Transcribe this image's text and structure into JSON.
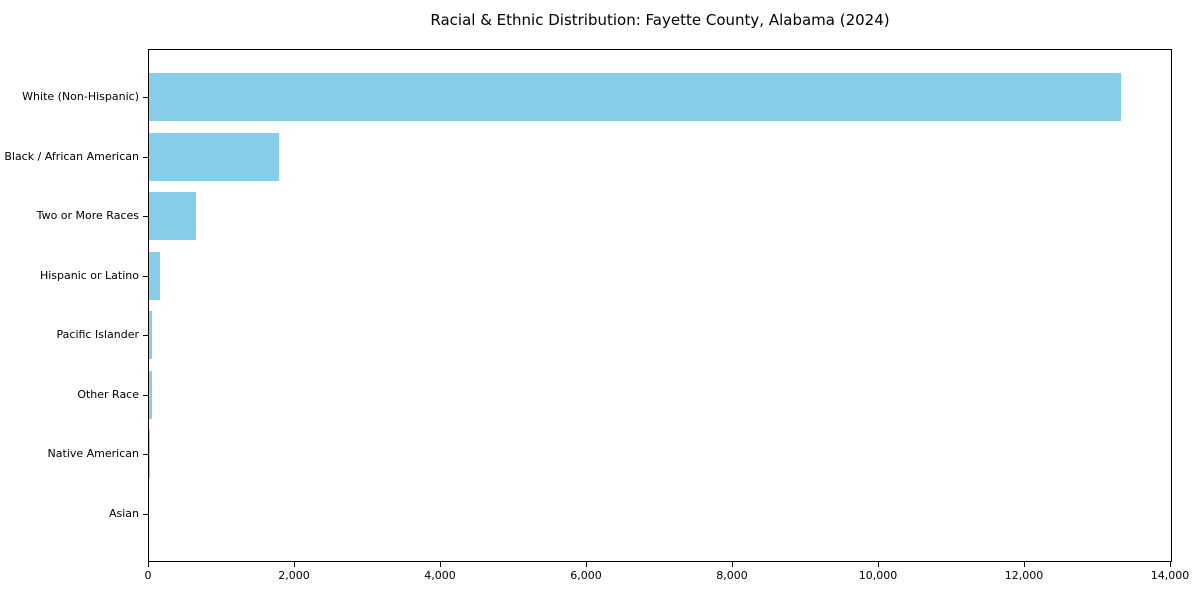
{
  "title": "Racial & Ethnic Distribution: Fayette County, Alabama (2024)",
  "colors": {
    "bar": "#87CEEB",
    "axis": "#000000",
    "background": "#FFFFFF",
    "text": "#000000"
  },
  "chart_data": {
    "type": "bar",
    "orientation": "horizontal",
    "title": "Racial & Ethnic Distribution: Fayette County, Alabama (2024)",
    "categories": [
      "White (Non-Hispanic)",
      "Black / African American",
      "Two or More Races",
      "Hispanic or Latino",
      "Pacific Islander",
      "Other Race",
      "Native American",
      "Asian"
    ],
    "values": [
      13310,
      1785,
      650,
      150,
      45,
      40,
      20,
      5
    ],
    "xlabel": "",
    "ylabel": "",
    "xlim": [
      0,
      14000
    ],
    "xticks": [
      0,
      2000,
      4000,
      6000,
      8000,
      10000,
      12000,
      14000
    ],
    "xtick_labels": [
      "0",
      "2,000",
      "4,000",
      "6,000",
      "8,000",
      "10,000",
      "12,000",
      "14,000"
    ],
    "grid": false,
    "legend": null,
    "bar_color": "#87CEEB",
    "sort": "descending"
  }
}
